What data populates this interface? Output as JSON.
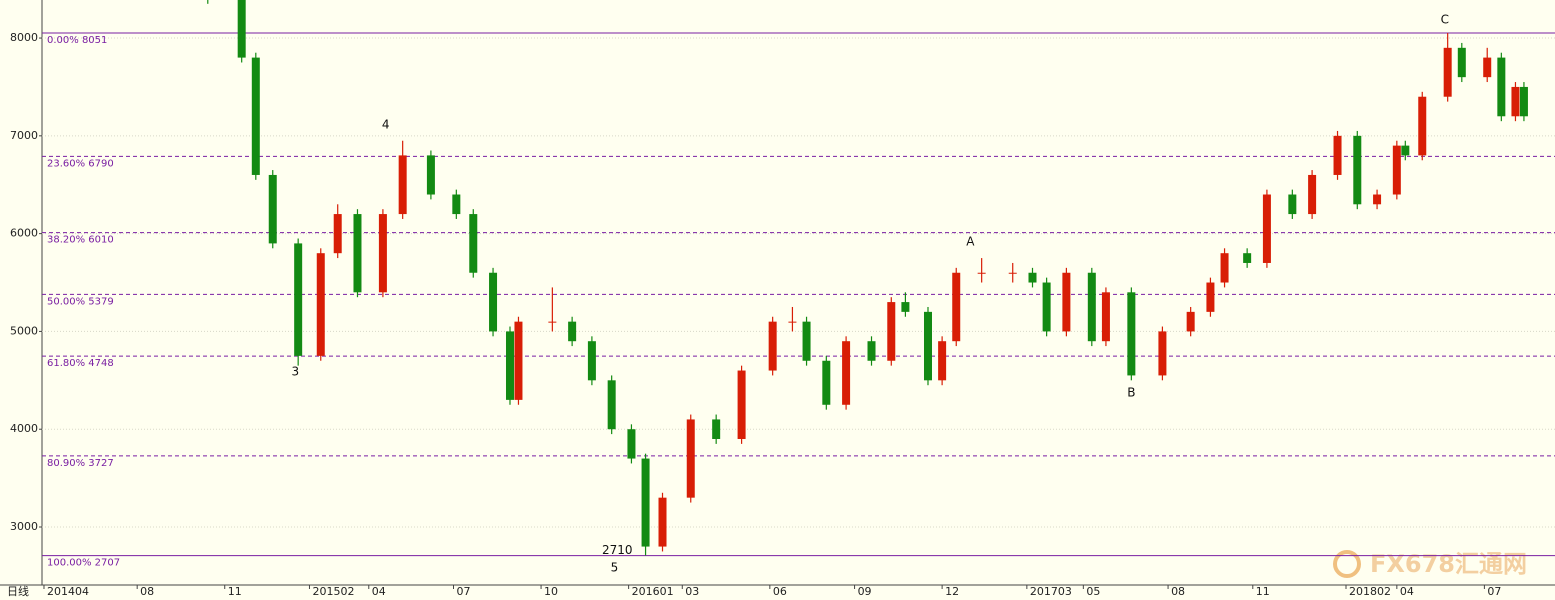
{
  "chart_data": {
    "type": "candlestick",
    "axis_caption": "日线",
    "watermark": "FX678汇通网",
    "up_color": "#d81e06",
    "down_color": "#138a13",
    "xlim": [
      -0.07,
      53.5
    ],
    "ylim": [
      2407,
      8389
    ],
    "yticks": [
      3000,
      4000,
      5000,
      6000,
      7000,
      8000
    ],
    "grid": true,
    "xticks": [
      {
        "value": 0,
        "label": "201404"
      },
      {
        "value": 3.3,
        "label": "08"
      },
      {
        "value": 6.4,
        "label": "11"
      },
      {
        "value": 9.4,
        "label": "201502"
      },
      {
        "value": 11.5,
        "label": "04"
      },
      {
        "value": 14.5,
        "label": "07"
      },
      {
        "value": 17.6,
        "label": "10"
      },
      {
        "value": 20.7,
        "label": "201601"
      },
      {
        "value": 22.6,
        "label": "03"
      },
      {
        "value": 25.7,
        "label": "06"
      },
      {
        "value": 28.7,
        "label": "09"
      },
      {
        "value": 31.8,
        "label": "12"
      },
      {
        "value": 34.8,
        "label": "201703"
      },
      {
        "value": 36.8,
        "label": "05"
      },
      {
        "value": 39.8,
        "label": "08"
      },
      {
        "value": 42.8,
        "label": "11"
      },
      {
        "value": 46.1,
        "label": "201802"
      },
      {
        "value": 47.9,
        "label": "04"
      },
      {
        "value": 51.0,
        "label": "07"
      }
    ],
    "x": [
      5.8,
      7.0,
      7.5,
      8.1,
      9.0,
      9.8,
      10.4,
      11.1,
      12.0,
      12.7,
      13.7,
      14.6,
      15.2,
      15.9,
      16.5,
      16.8,
      18.0,
      18.7,
      19.4,
      20.1,
      20.8,
      21.3,
      21.9,
      22.9,
      23.8,
      24.7,
      25.8,
      26.5,
      27.0,
      27.7,
      28.4,
      29.3,
      30.0,
      30.5,
      31.3,
      31.8,
      32.3,
      33.2,
      34.3,
      35.0,
      35.5,
      36.2,
      37.1,
      37.6,
      38.5,
      39.6,
      40.6,
      41.3,
      41.8,
      42.6,
      43.3,
      44.2,
      44.9,
      45.8,
      46.5,
      47.2,
      47.9,
      48.2,
      48.8,
      49.7,
      50.2,
      51.1,
      51.6,
      52.1,
      52.4
    ],
    "open": [
      8600,
      8400,
      7800,
      6600,
      5900,
      4750,
      5800,
      6200,
      5400,
      6200,
      6800,
      6400,
      6200,
      5600,
      5000,
      4300,
      5100,
      5100,
      4900,
      4500,
      4000,
      3700,
      2800,
      3300,
      4100,
      3900,
      4600,
      5100,
      5100,
      4700,
      4250,
      4900,
      4700,
      5300,
      5200,
      4500,
      4900,
      5600,
      5600,
      5600,
      5500,
      5000,
      5600,
      4900,
      5400,
      4550,
      5000,
      5200,
      5500,
      5800,
      5700,
      6400,
      6200,
      6600,
      7000,
      6300,
      6400,
      6900,
      6800,
      7400,
      7900,
      7600,
      7800,
      7200,
      7500
    ],
    "high": [
      8700,
      8450,
      7850,
      6650,
      5950,
      5850,
      6300,
      6250,
      6250,
      6950,
      6850,
      6450,
      6250,
      5650,
      5050,
      5150,
      5450,
      5150,
      4950,
      4550,
      4050,
      3750,
      3350,
      4150,
      4150,
      4650,
      5150,
      5250,
      5150,
      4750,
      4950,
      4950,
      5350,
      5400,
      5250,
      4950,
      5650,
      5750,
      5700,
      5650,
      5550,
      5650,
      5650,
      5450,
      5450,
      5050,
      5250,
      5550,
      5850,
      5850,
      6450,
      6450,
      6650,
      7050,
      7050,
      6450,
      6950,
      6950,
      7450,
      8051,
      7950,
      7900,
      7850,
      7550,
      7550
    ],
    "low": [
      8350,
      7750,
      6550,
      5850,
      4650,
      4700,
      5750,
      5350,
      5350,
      6150,
      6350,
      6150,
      5550,
      4950,
      4250,
      4250,
      5000,
      4850,
      4450,
      3950,
      3650,
      2710,
      2750,
      3250,
      3850,
      3850,
      4550,
      5000,
      4650,
      4200,
      4200,
      4650,
      4650,
      5150,
      4450,
      4450,
      4850,
      5500,
      5500,
      5450,
      4950,
      4950,
      4850,
      4850,
      4500,
      4500,
      4950,
      5150,
      5450,
      5650,
      5650,
      6150,
      6150,
      6550,
      6250,
      6250,
      6350,
      6750,
      6750,
      7350,
      7550,
      7550,
      7150,
      7150,
      7150
    ],
    "close": [
      8400,
      7800,
      6600,
      5900,
      4750,
      5800,
      6200,
      5400,
      6200,
      6800,
      6400,
      6200,
      5600,
      5000,
      4300,
      5100,
      5100,
      4900,
      4500,
      4000,
      3700,
      2800,
      3300,
      4100,
      3900,
      4600,
      5100,
      5100,
      4700,
      4250,
      4900,
      4700,
      5300,
      5200,
      4500,
      4900,
      5600,
      5600,
      5600,
      5500,
      5000,
      5600,
      4900,
      5400,
      4550,
      5000,
      5200,
      5500,
      5800,
      5700,
      6400,
      6200,
      6600,
      7000,
      6300,
      6400,
      6900,
      6800,
      7400,
      7900,
      7600,
      7800,
      7200,
      7500,
      7200
    ],
    "fib_color": "#7a1fa2",
    "fib_levels": [
      {
        "label": "0.00% 8051",
        "value": 8051,
        "style": "solid"
      },
      {
        "label": "23.60% 6790",
        "value": 6790,
        "style": "dashed"
      },
      {
        "label": "38.20% 6010",
        "value": 6010,
        "style": "dashed"
      },
      {
        "label": "50.00% 5379",
        "value": 5379,
        "style": "dashed"
      },
      {
        "label": "61.80% 4748",
        "value": 4748,
        "style": "dashed"
      },
      {
        "label": "80.90% 3727",
        "value": 3727,
        "style": "dashed"
      },
      {
        "label": "100.00% 2707",
        "value": 2707,
        "style": "solid"
      }
    ],
    "annotations": [
      {
        "text": "3",
        "x": 8.9,
        "y": 4585
      },
      {
        "text": "4",
        "x": 12.1,
        "y": 7110
      },
      {
        "text": "2710",
        "x": 20.3,
        "y": 2760
      },
      {
        "text": "5",
        "x": 20.2,
        "y": 2580
      },
      {
        "text": "A",
        "x": 32.8,
        "y": 5914
      },
      {
        "text": "B",
        "x": 38.5,
        "y": 4370
      },
      {
        "text": "C",
        "x": 49.6,
        "y": 8184
      }
    ]
  }
}
